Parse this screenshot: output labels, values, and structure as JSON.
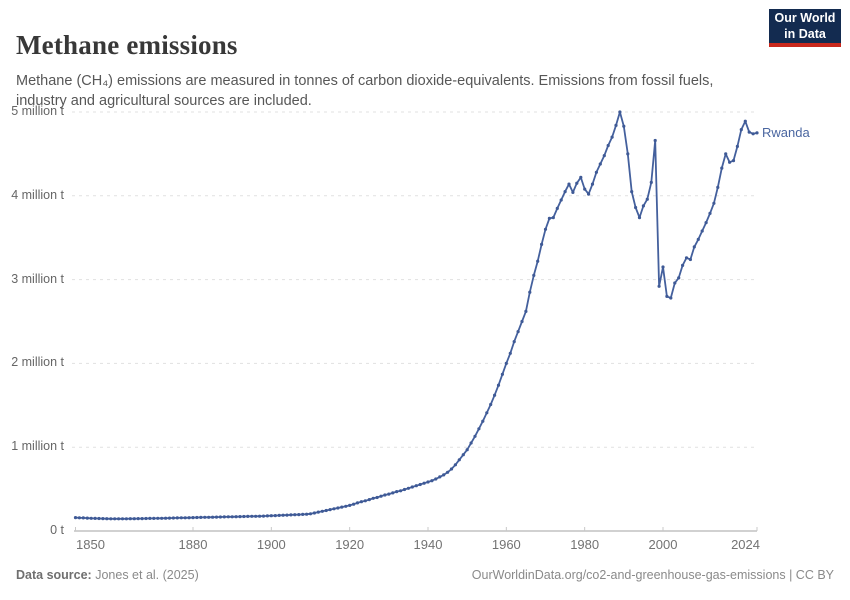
{
  "header": {
    "title": "Methane emissions",
    "subtitle": "Methane (CH₄) emissions are measured in tonnes of carbon dioxide-equivalents. Emissions from fossil fuels, industry and agricultural sources are included."
  },
  "logo": {
    "line1": "Our World",
    "line2": "in Data",
    "bg_color": "#132b50",
    "accent_color": "#c9281c"
  },
  "footer": {
    "datasource_label": "Data source:",
    "datasource_value": "Jones et al. (2025)",
    "credit": "OurWorldinData.org/co2-and-greenhouse-gas-emissions | CC BY"
  },
  "chart_data": {
    "type": "line",
    "title": "Methane emissions",
    "xlabel": "",
    "ylabel": "",
    "grid": true,
    "grid_color": "#e1e1e1",
    "axis_color": "#a3a3a3",
    "tick_color": "#c8c8c8",
    "line_color": "#44609d",
    "marker_color": "#3f5a96",
    "x_range": [
      1850,
      2024
    ],
    "ylim_million_t": [
      0,
      5
    ],
    "yticks": [
      {
        "value_million": 0,
        "label": "0 t"
      },
      {
        "value_million": 1,
        "label": "1 million t"
      },
      {
        "value_million": 2,
        "label": "2 million t"
      },
      {
        "value_million": 3,
        "label": "3 million t"
      },
      {
        "value_million": 4,
        "label": "4 million t"
      },
      {
        "value_million": 5,
        "label": "5 million t"
      }
    ],
    "xticks": [
      {
        "year": 1850,
        "label": "1850"
      },
      {
        "year": 1880,
        "label": "1880"
      },
      {
        "year": 1900,
        "label": "1900"
      },
      {
        "year": 1920,
        "label": "1920"
      },
      {
        "year": 1940,
        "label": "1940"
      },
      {
        "year": 1960,
        "label": "1960"
      },
      {
        "year": 1980,
        "label": "1980"
      },
      {
        "year": 2000,
        "label": "2000"
      },
      {
        "year": 2024,
        "label": "2024"
      }
    ],
    "series": [
      {
        "name": "Rwanda",
        "year_start": 1850,
        "year_step": 1,
        "values_million_t": [
          0.16,
          0.158,
          0.156,
          0.154,
          0.152,
          0.15,
          0.149,
          0.148,
          0.147,
          0.146,
          0.146,
          0.146,
          0.146,
          0.146,
          0.147,
          0.147,
          0.148,
          0.148,
          0.149,
          0.15,
          0.15,
          0.151,
          0.152,
          0.153,
          0.154,
          0.155,
          0.156,
          0.157,
          0.158,
          0.159,
          0.16,
          0.161,
          0.162,
          0.163,
          0.164,
          0.165,
          0.166,
          0.167,
          0.168,
          0.169,
          0.17,
          0.171,
          0.172,
          0.173,
          0.174,
          0.175,
          0.176,
          0.177,
          0.178,
          0.18,
          0.182,
          0.184,
          0.186,
          0.188,
          0.19,
          0.192,
          0.194,
          0.196,
          0.198,
          0.2,
          0.205,
          0.215,
          0.225,
          0.235,
          0.245,
          0.255,
          0.265,
          0.275,
          0.285,
          0.295,
          0.305,
          0.32,
          0.335,
          0.35,
          0.36,
          0.375,
          0.39,
          0.4,
          0.415,
          0.43,
          0.44,
          0.455,
          0.47,
          0.48,
          0.495,
          0.51,
          0.525,
          0.54,
          0.555,
          0.57,
          0.585,
          0.6,
          0.62,
          0.645,
          0.67,
          0.7,
          0.74,
          0.79,
          0.85,
          0.91,
          0.97,
          1.05,
          1.13,
          1.22,
          1.31,
          1.41,
          1.51,
          1.62,
          1.74,
          1.87,
          2.0,
          2.12,
          2.26,
          2.38,
          2.5,
          2.62,
          2.85,
          3.05,
          3.22,
          3.42,
          3.6,
          3.73,
          3.74,
          3.85,
          3.95,
          4.05,
          4.14,
          4.04,
          4.15,
          4.22,
          4.08,
          4.02,
          4.14,
          4.28,
          4.38,
          4.48,
          4.6,
          4.7,
          4.84,
          5.0,
          4.83,
          4.5,
          4.05,
          3.86,
          3.74,
          3.88,
          3.96,
          4.16,
          4.66,
          2.92,
          3.15,
          2.8,
          2.78,
          2.96,
          3.02,
          3.17,
          3.26,
          3.24,
          3.39,
          3.48,
          3.58,
          3.68,
          3.79,
          3.91,
          4.1,
          4.33,
          4.5,
          4.4,
          4.42,
          4.59,
          4.79,
          4.89,
          4.76,
          4.74,
          4.75
        ]
      }
    ]
  }
}
